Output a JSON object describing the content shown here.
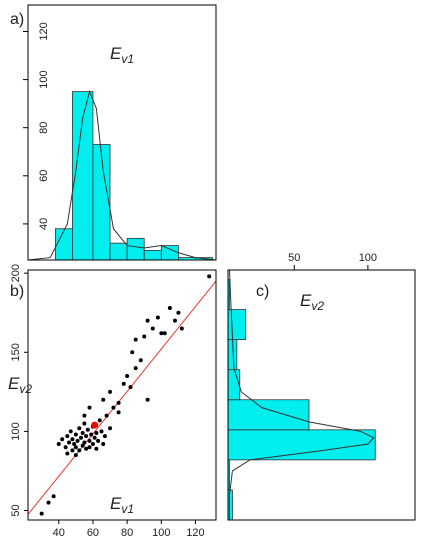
{
  "chart_data": [
    {
      "type": "histogram",
      "orientation": "vertical",
      "panel_label": "a)",
      "label": {
        "main": "E",
        "sub": "v1"
      },
      "bins": [
        38,
        48,
        60,
        70,
        80,
        90,
        100,
        110,
        120,
        130
      ],
      "counts": [
        38,
        95,
        73,
        32,
        34,
        29,
        31,
        26,
        26
      ],
      "color": "#00eeee",
      "density": {
        "x": [
          22,
          35,
          45,
          50,
          54,
          58,
          62,
          66,
          72,
          80,
          90,
          100,
          110,
          120,
          132
        ],
        "y": [
          25,
          26,
          40,
          62,
          84,
          95,
          88,
          62,
          38,
          31,
          30,
          31,
          28,
          26,
          25
        ]
      },
      "xlim": [
        22,
        132
      ],
      "ylim": [
        25,
        131
      ],
      "yticks": [
        40,
        60,
        80,
        100,
        120
      ]
    },
    {
      "type": "scatter",
      "panel_label": "b)",
      "x_label": {
        "main": "E",
        "sub": "v1"
      },
      "y_label": {
        "main": "E",
        "sub": "v2"
      },
      "x": [
        40,
        42,
        44,
        45,
        46,
        47,
        48,
        48,
        49,
        50,
        50,
        51,
        52,
        52,
        53,
        54,
        54,
        55,
        55,
        56,
        56,
        57,
        58,
        58,
        59,
        60,
        60,
        61,
        62,
        62,
        63,
        64,
        65,
        66,
        67,
        68,
        70,
        72,
        58,
        55,
        50,
        45,
        30,
        34,
        37,
        75,
        78,
        80,
        82,
        85,
        83,
        88,
        90,
        92,
        95,
        98,
        100,
        102,
        105,
        108,
        110,
        112,
        85,
        92,
        128,
        75,
        66,
        70
      ],
      "y": [
        92,
        95,
        90,
        97,
        93,
        100,
        88,
        95,
        92,
        98,
        90,
        94,
        102,
        88,
        96,
        91,
        99,
        93,
        105,
        89,
        97,
        101,
        94,
        90,
        98,
        92,
        103,
        96,
        99,
        89,
        94,
        107,
        100,
        92,
        97,
        110,
        102,
        115,
        115,
        110,
        85,
        86,
        48,
        55,
        59,
        118,
        130,
        135,
        128,
        140,
        150,
        145,
        160,
        170,
        165,
        172,
        162,
        162,
        178,
        170,
        175,
        165,
        158,
        120,
        198,
        112,
        120,
        125
      ],
      "color": "#000000",
      "highlight": {
        "x": 61,
        "y": 104,
        "color": "#ff0000"
      },
      "fit_line": {
        "x": [
          22,
          132
        ],
        "y": [
          47.5,
          195
        ],
        "color": "#e8392c"
      },
      "xlim": [
        22,
        132
      ],
      "ylim": [
        44,
        202
      ],
      "xticks": [
        40,
        60,
        80,
        100,
        120
      ],
      "yticks": [
        50,
        100,
        150,
        200
      ]
    },
    {
      "type": "histogram",
      "orientation": "horizontal",
      "panel_label": "c)",
      "label": {
        "main": "E",
        "sub": "v2"
      },
      "bins": [
        44,
        63,
        82,
        101,
        120,
        139,
        158,
        177,
        196
      ],
      "counts": [
        8,
        6,
        105,
        60,
        13,
        11,
        17,
        6
      ],
      "color": "#00eeee",
      "density": {
        "y": [
          44,
          60,
          75,
          82,
          88,
          92,
          96,
          100,
          106,
          115,
          125,
          140,
          160,
          180,
          202
        ],
        "x": [
          6,
          6,
          8,
          20,
          70,
          100,
          104,
          95,
          60,
          28,
          14,
          9,
          8,
          7,
          6
        ]
      },
      "xlim": [
        5,
        132
      ],
      "ylim": [
        44,
        202
      ],
      "xticks": [
        50,
        100
      ]
    }
  ]
}
